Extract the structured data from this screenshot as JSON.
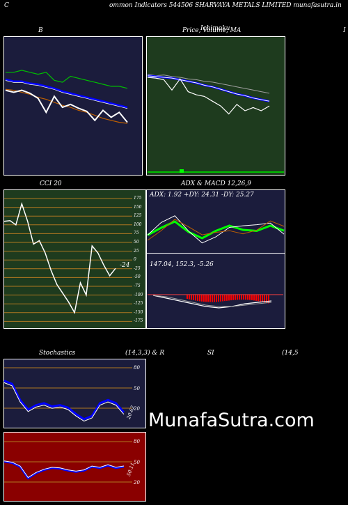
{
  "header": {
    "left_char": "C",
    "text": "ommon  Indicators 544506  SHARVAYA METALS LIMITED munafasutra.in"
  },
  "panels": {
    "b": {
      "title": "B"
    },
    "price": {
      "title": "Price,  Volume,  MA",
      "overlay": "Ichimoku"
    },
    "cci": {
      "title": "CCI 20",
      "value_label": "-24",
      "ticks": [
        "175",
        "150",
        "125",
        "100",
        "75",
        "50",
        "25",
        "0",
        "-25",
        "-50",
        "-75",
        "-100",
        "-125",
        "-150",
        "-175"
      ]
    },
    "adx": {
      "title": "ADX  & MACD 12,26,9",
      "adx_label": "ADX: 1.92  +DY: 24.31 -DY: 25.27",
      "macd_label": "147.04,  152.3,  -5.26"
    },
    "stoch": {
      "title_left": "Stochastics",
      "title_right": "(14,3,3) & R",
      "ticks": [
        "80",
        "50",
        "20"
      ],
      "value_label": "20.62"
    },
    "rsi": {
      "title_left": "SI",
      "title_right": "(14,5",
      "ticks": [
        "80",
        "50",
        "20"
      ],
      "value_label": "50.11"
    },
    "right_edge": "I"
  },
  "watermark": "MunafaSutra.com",
  "colors": {
    "navy": "#1b1c3c",
    "green": "#1e3b1e",
    "red": "#8a0000",
    "blue": "#0000ff",
    "lime": "#00ff00",
    "orange": "#d07000"
  },
  "chart_data": [
    {
      "type": "line",
      "title": "B",
      "series": [
        {
          "values": [
            80,
            80,
            82,
            80,
            78,
            80,
            72,
            70,
            76,
            74,
            72,
            70,
            68,
            66,
            66,
            64
          ]
        },
        {
          "values": [
            72,
            70,
            70,
            68,
            67,
            65,
            63,
            60,
            58,
            56,
            54,
            52,
            50,
            48,
            46,
            44
          ]
        },
        {
          "values": [
            63,
            62,
            60,
            58,
            55,
            53,
            50,
            47,
            45,
            42,
            40,
            37,
            34,
            32,
            30,
            29
          ]
        },
        {
          "values": [
            62,
            60,
            62,
            59,
            54,
            40,
            56,
            45,
            48,
            44,
            41,
            32,
            42,
            35,
            40,
            30
          ]
        }
      ]
    },
    {
      "type": "line",
      "title": "Price,  Volume,  MA",
      "series": [
        {
          "values": [
            100,
            98,
            99,
            97,
            96,
            94,
            93,
            91,
            90,
            88,
            86,
            84,
            82,
            80,
            78,
            76
          ]
        },
        {
          "values": [
            98,
            97,
            96,
            95,
            93,
            91,
            89,
            86,
            84,
            81,
            78,
            75,
            73,
            70,
            68,
            66
          ]
        },
        {
          "values": [
            96,
            95,
            93,
            80,
            94,
            78,
            74,
            72,
            66,
            60,
            50,
            62,
            54,
            58,
            54,
            60
          ]
        }
      ]
    },
    {
      "type": "line",
      "title": "CCI 20",
      "ylim": [
        -175,
        175
      ],
      "values": [
        110,
        112,
        100,
        160,
        110,
        45,
        55,
        20,
        -30,
        -70,
        -95,
        -120,
        -150,
        -65,
        -100,
        40,
        20,
        -15,
        -45,
        -24
      ]
    },
    {
      "type": "line",
      "title": "ADX  & MACD 12,26,9",
      "adx_values": [
        1.5,
        2.2,
        2.8,
        1.8,
        1.2,
        1.9,
        2.4,
        2.0,
        1.9,
        2.4,
        1.92
      ],
      "macd_values": [
        147.04,
        152.3,
        -5.26
      ]
    },
    {
      "type": "line",
      "title": "Stochastics (14,3,3)",
      "ylim": [
        0,
        100
      ],
      "values": [
        70,
        65,
        40,
        25,
        32,
        35,
        30,
        32,
        28,
        18,
        10,
        15,
        35,
        40,
        35,
        20.62
      ]
    },
    {
      "type": "line",
      "title": "RSI (14",
      "ylim": [
        0,
        100
      ],
      "values": [
        58,
        56,
        50,
        32,
        40,
        45,
        48,
        47,
        44,
        42,
        44,
        50,
        48,
        52,
        48,
        50.11
      ]
    }
  ]
}
